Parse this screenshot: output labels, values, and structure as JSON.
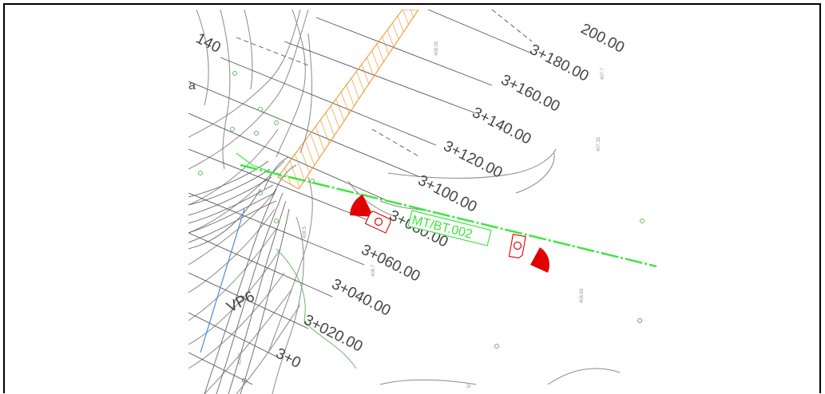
{
  "drawing": {
    "chainages": [
      {
        "id": "ch-3200",
        "label": "200.00"
      },
      {
        "id": "ch-3180",
        "label": "3+180.00"
      },
      {
        "id": "ch-3160",
        "label": "3+160.00"
      },
      {
        "id": "ch-3140",
        "label": "3+140.00"
      },
      {
        "id": "ch-3120",
        "label": "3+120.00"
      },
      {
        "id": "ch-3100",
        "label": "3+100.00"
      },
      {
        "id": "ch-3080",
        "label": "3+080.00"
      },
      {
        "id": "ch-3060",
        "label": "3+060.00"
      },
      {
        "id": "ch-3040",
        "label": "3+040.00"
      },
      {
        "id": "ch-3020",
        "label": "3+020.00"
      },
      {
        "id": "ch-3000",
        "label": "3+0"
      }
    ],
    "top_left_label": "140",
    "side_label": "a",
    "cable_label": "MT/BT.002",
    "post_label": "VP6",
    "elevations": [
      "408.09",
      "407.7",
      "407.35",
      "408.09",
      "408.69",
      "408.7",
      "408.5",
      "408.4",
      "30"
    ],
    "colors": {
      "cable": "#3ee63e",
      "equipment": "#e00000",
      "hatch": "#f08c1e",
      "contour": "#8a8a8a",
      "water": "#4a8cdc",
      "vegetation": "#66b866"
    }
  }
}
